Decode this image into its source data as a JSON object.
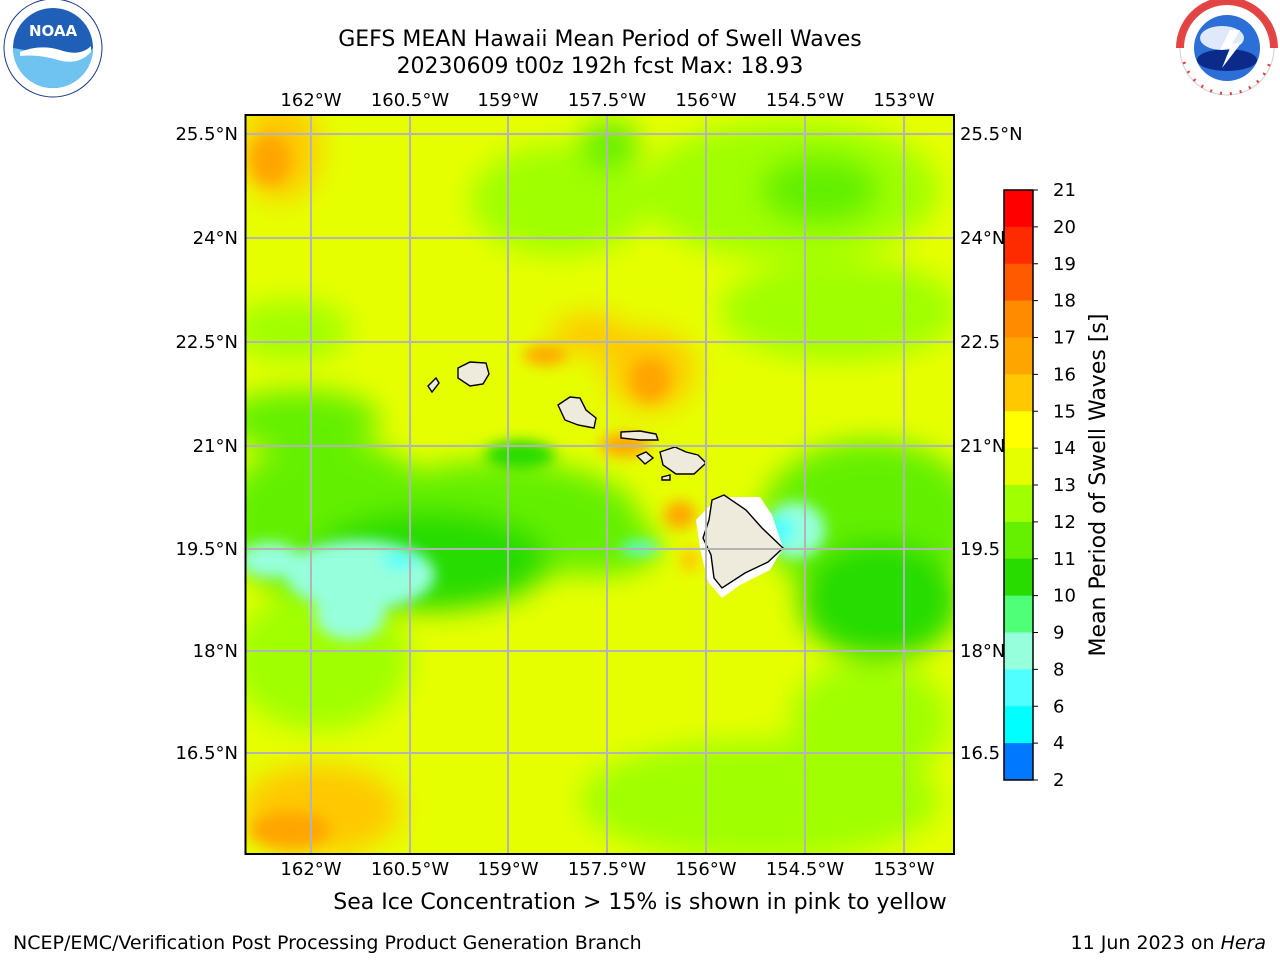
{
  "header": {
    "title_line1": "GEFS MEAN Hawaii Mean Period of Swell Waves",
    "title_line2": "20230609 t00z 192h fcst   Max: 18.93"
  },
  "logos": {
    "left": {
      "name": "noaa-logo",
      "text": "NOAA",
      "ring_text": "NATIONAL OCEANIC AND ATMOSPHERIC ADMINISTRATION · U.S. DEPARTMENT OF COMMERCE"
    },
    "right": {
      "name": "nws-logo",
      "ring_text": "NATIONAL WEATHER SERVICE"
    }
  },
  "map": {
    "lon_labels": [
      "162°W",
      "160.5°W",
      "159°W",
      "157.5°W",
      "156°W",
      "154.5°W",
      "153°W"
    ],
    "lat_labels_left": [
      "25.5°N",
      "24°N",
      "22.5°N",
      "21°N",
      "19.5°N",
      "18°N",
      "16.5°N"
    ],
    "lat_labels_right": [
      "25.5°N",
      "24°N",
      "22.5",
      "21°N",
      "19.5",
      "18°N",
      "16.5"
    ],
    "land_color": "#eeebdc",
    "grid_color": "#b4b4b4"
  },
  "colorbar": {
    "label": "Mean Period of Swell Waves [s]",
    "ticks": [
      "21",
      "20",
      "19",
      "18",
      "17",
      "16",
      "15",
      "14",
      "13",
      "12",
      "11",
      "10",
      "9",
      "8",
      "6",
      "4",
      "2"
    ],
    "colors": [
      "#ff0000",
      "#ff2b00",
      "#ff5a00",
      "#ff8c00",
      "#ffa500",
      "#ffc800",
      "#ffff00",
      "#e6ff00",
      "#a0ff00",
      "#64f000",
      "#28dc00",
      "#50ff78",
      "#96ffdc",
      "#50ffff",
      "#00ffff",
      "#0078ff",
      "#0000ff"
    ]
  },
  "footer": {
    "caption": "Sea Ice Concentration > 15% is shown in pink to yellow",
    "credit_left": "NCEP/EMC/Verification Post Processing Product Generation Branch",
    "credit_date": "11 Jun 2023 on ",
    "credit_host": "Hera"
  }
}
